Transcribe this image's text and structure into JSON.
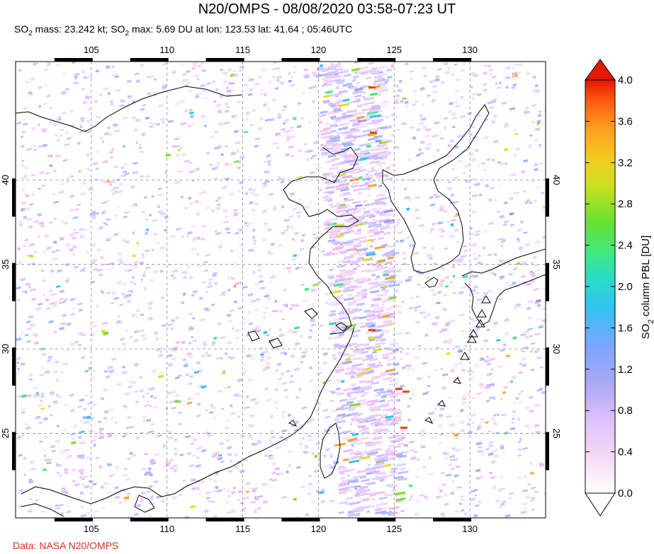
{
  "title": "N20/OMPS - 08/08/2020 03:58-07:23 UT",
  "subtitle": {
    "mass_prefix": "SO",
    "mass_sub": "2",
    "mass_text": " mass: 23.242 kt; SO",
    "max_sub": "2",
    "max_text": " max: 5.69 DU at lon: 123.53 lat: 41.64 ; 05:46UTC"
  },
  "credit": "Data: NASA N20/OMPS",
  "map": {
    "lon_range": [
      100,
      135
    ],
    "lat_range": [
      20,
      47
    ],
    "lon_ticks": [
      "105",
      "110",
      "115",
      "120",
      "125",
      "130"
    ],
    "lon_tick_values": [
      105,
      110,
      115,
      120,
      125,
      130
    ],
    "lat_ticks": [
      "40",
      "35",
      "30",
      "25"
    ],
    "lat_tick_values": [
      40,
      35,
      30,
      25
    ],
    "grid": "dashed",
    "volcano_marker": "triangle-icon"
  },
  "colorbar": {
    "title_prefix": "SO",
    "title_sub": "2",
    "title_suffix": " column PBL [DU]",
    "min": 0.0,
    "max": 4.0,
    "labels": [
      "4.0",
      "3.6",
      "3.2",
      "2.8",
      "2.4",
      "2.0",
      "1.6",
      "1.2",
      "0.8",
      "0.4",
      "0.0"
    ],
    "colors": [
      "#ffffff",
      "#f2c8f2",
      "#d8b8ff",
      "#9a9af0",
      "#4aa0ff",
      "#28d8e0",
      "#40e890",
      "#7ae020",
      "#e0e020",
      "#ffa020",
      "#ff4010",
      "#e01000"
    ],
    "over_color": "#e41a00",
    "under_color": "#ffffff"
  }
}
